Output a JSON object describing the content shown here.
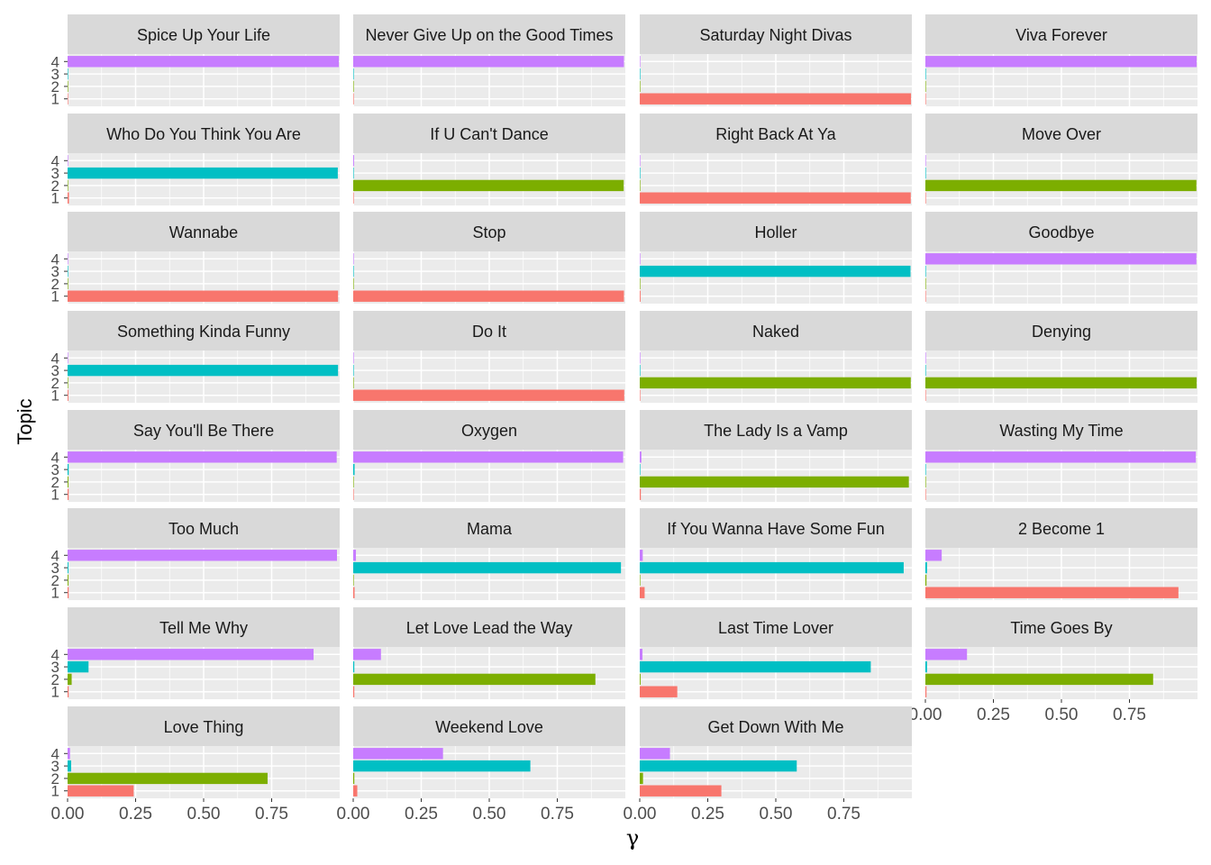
{
  "chart_data": {
    "type": "bar",
    "orientation": "horizontal",
    "xlabel": "γ",
    "ylabel": "Topic",
    "xlim": [
      0,
      1
    ],
    "x_ticks": [
      "0.00",
      "0.25",
      "0.50",
      "0.75"
    ],
    "y_categories": [
      "1",
      "2",
      "3",
      "4"
    ],
    "grid": true,
    "legend": "none",
    "topic_colors": {
      "1": "#F8766D",
      "2": "#7CAE00",
      "3": "#00BFC4",
      "4": "#C77CFF"
    },
    "panel_bg": "#EBEBEB",
    "strip_bg": "#D9D9D9",
    "facets": [
      {
        "title": "Spice Up Your Life",
        "values": [
          0.001,
          0.001,
          0.001,
          0.997
        ]
      },
      {
        "title": "Never Give Up on the Good Times",
        "values": [
          0.002,
          0.002,
          0.001,
          0.995
        ]
      },
      {
        "title": "Saturday Night Divas",
        "values": [
          0.997,
          0.001,
          0.001,
          0.001
        ]
      },
      {
        "title": "Viva Forever",
        "values": [
          0.001,
          0.001,
          0.001,
          0.997
        ]
      },
      {
        "title": "Who Do You Think You Are",
        "values": [
          0.005,
          0.001,
          0.993,
          0.001
        ]
      },
      {
        "title": "If U Can't Dance",
        "values": [
          0.002,
          0.994,
          0.001,
          0.003
        ]
      },
      {
        "title": "Right Back At Ya",
        "values": [
          0.996,
          0.001,
          0.002,
          0.001
        ]
      },
      {
        "title": "Move Over",
        "values": [
          0.001,
          0.996,
          0.001,
          0.002
        ]
      },
      {
        "title": "Wannabe",
        "values": [
          0.994,
          0.002,
          0.002,
          0.002
        ]
      },
      {
        "title": "Stop",
        "values": [
          0.995,
          0.002,
          0.001,
          0.002
        ]
      },
      {
        "title": "Holler",
        "values": [
          0.003,
          0.001,
          0.995,
          0.001
        ]
      },
      {
        "title": "Goodbye",
        "values": [
          0.001,
          0.002,
          0.001,
          0.996
        ]
      },
      {
        "title": "Something Kinda Funny",
        "values": [
          0.003,
          0.001,
          0.994,
          0.002
        ]
      },
      {
        "title": "Do It",
        "values": [
          0.996,
          0.001,
          0.001,
          0.002
        ]
      },
      {
        "title": "Naked",
        "values": [
          0.001,
          0.996,
          0.001,
          0.002
        ]
      },
      {
        "title": "Denying",
        "values": [
          0.001,
          0.997,
          0.001,
          0.001
        ]
      },
      {
        "title": "Say You'll Be There",
        "values": [
          0.004,
          0.003,
          0.004,
          0.989
        ]
      },
      {
        "title": "Oxygen",
        "values": [
          0.002,
          0.001,
          0.005,
          0.992
        ]
      },
      {
        "title": "The Lady Is a Vamp",
        "values": [
          0.004,
          0.989,
          0.001,
          0.006
        ]
      },
      {
        "title": "Wasting My Time",
        "values": [
          0.002,
          0.002,
          0.002,
          0.994
        ]
      },
      {
        "title": "Too Much",
        "values": [
          0.004,
          0.003,
          0.003,
          0.99
        ]
      },
      {
        "title": "Mama",
        "values": [
          0.005,
          0.001,
          0.984,
          0.01
        ]
      },
      {
        "title": "If You Wanna Have Some Fun",
        "values": [
          0.018,
          0.001,
          0.97,
          0.011
        ]
      },
      {
        "title": "2 Become 1",
        "values": [
          0.93,
          0.004,
          0.006,
          0.06
        ]
      },
      {
        "title": "Tell Me Why",
        "values": [
          0.004,
          0.015,
          0.077,
          0.904
        ]
      },
      {
        "title": "Let Love Lead the Way",
        "values": [
          0.004,
          0.89,
          0.004,
          0.102
        ]
      },
      {
        "title": "Last Time Lover",
        "values": [
          0.138,
          0.003,
          0.849,
          0.01
        ]
      },
      {
        "title": "Time Goes By",
        "values": [
          0.004,
          0.837,
          0.006,
          0.153
        ]
      },
      {
        "title": "Love Thing",
        "values": [
          0.243,
          0.735,
          0.013,
          0.009
        ]
      },
      {
        "title": "Weekend Love",
        "values": [
          0.015,
          0.004,
          0.651,
          0.33
        ]
      },
      {
        "title": "Get Down With Me",
        "values": [
          0.3,
          0.012,
          0.577,
          0.111
        ]
      }
    ]
  }
}
